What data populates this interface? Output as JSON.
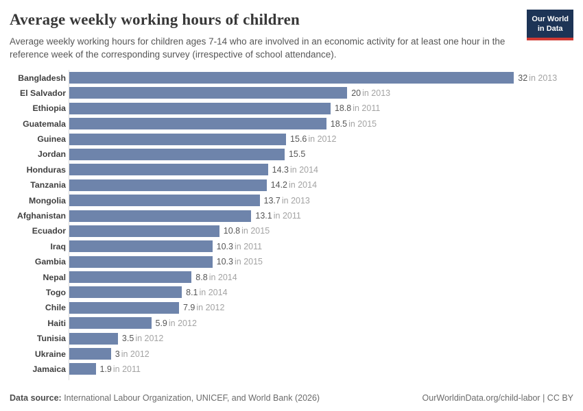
{
  "header": {
    "title": "Average weekly working hours of children",
    "subtitle": "Average weekly working hours for children ages 7-14 who are involved in an economic activity for at least one hour in the reference week of the corresponding survey (irrespective of school attendance).",
    "logo": {
      "line1": "Our World",
      "line2": "in Data"
    }
  },
  "chart_data": {
    "type": "bar",
    "orientation": "horizontal",
    "title": "Average weekly working hours of children",
    "xlabel": "",
    "ylabel": "",
    "xlim": [
      0,
      32
    ],
    "grid": false,
    "legend": false,
    "bar_color": "#6e84ab",
    "categories": [
      "Bangladesh",
      "El Salvador",
      "Ethiopia",
      "Guatemala",
      "Guinea",
      "Jordan",
      "Honduras",
      "Tanzania",
      "Mongolia",
      "Afghanistan",
      "Ecuador",
      "Iraq",
      "Gambia",
      "Nepal",
      "Togo",
      "Chile",
      "Haiti",
      "Tunisia",
      "Ukraine",
      "Jamaica"
    ],
    "values": [
      32,
      20,
      18.8,
      18.5,
      15.6,
      15.5,
      14.3,
      14.2,
      13.7,
      13.1,
      10.8,
      10.3,
      10.3,
      8.8,
      8.1,
      7.9,
      5.9,
      3.5,
      3,
      1.9
    ],
    "value_labels": [
      "32",
      "20",
      "18.8",
      "18.5",
      "15.6",
      "15.5",
      "14.3",
      "14.2",
      "13.7",
      "13.1",
      "10.8",
      "10.3",
      "10.3",
      "8.8",
      "8.1",
      "7.9",
      "5.9",
      "3.5",
      "3",
      "1.9"
    ],
    "year_labels": [
      "in 2013",
      "in 2013",
      "in 2011",
      "in 2015",
      "in 2012",
      "",
      "in 2014",
      "in 2014",
      "in 2013",
      "in 2011",
      "in 2015",
      "in 2011",
      "in 2015",
      "in 2014",
      "in 2014",
      "in 2012",
      "in 2012",
      "in 2012",
      "in 2012",
      "in 2011"
    ]
  },
  "colors": {
    "bar": "#6e84ab",
    "logo_navy": "#1d3456",
    "logo_red": "#d13a34",
    "axis_line": "#dcdcdc"
  },
  "footer": {
    "datasource_label": "Data source:",
    "datasource_text": " International Labour Organization, UNICEF, and World Bank (2026)",
    "attribution": "OurWorldinData.org/child-labor | CC BY"
  }
}
